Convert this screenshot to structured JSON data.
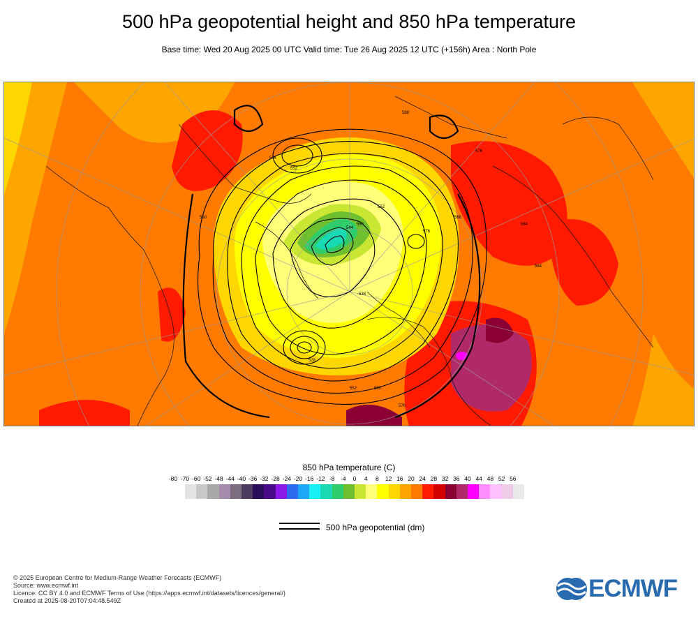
{
  "title": "500 hPa geopotential height and 850 hPa temperature",
  "subtitle": "Base time: Wed 20 Aug 2025 00 UTC Valid time: Tue 26 Aug 2025 12 UTC (+156h) Area : North Pole",
  "colorbar": {
    "title": "850 hPa temperature (C)",
    "ticks": [
      "-80",
      "-70",
      "-60",
      "-52",
      "-48",
      "-44",
      "-40",
      "-36",
      "-32",
      "-28",
      "-24",
      "-20",
      "-16",
      "-12",
      "-8",
      "-4",
      "0",
      "4",
      "8",
      "12",
      "16",
      "20",
      "24",
      "28",
      "32",
      "36",
      "40",
      "44",
      "48",
      "52",
      "56"
    ],
    "colors": [
      "#e3e3e3",
      "#c8c8c8",
      "#a9a9a9",
      "#a48bab",
      "#7b6c80",
      "#4d3a5f",
      "#2b0d5a",
      "#4a0a8a",
      "#8a19e8",
      "#2f6bf0",
      "#1ea7f5",
      "#19f0f5",
      "#19d8b4",
      "#2ecc6b",
      "#6fbf2e",
      "#c8e632",
      "#ffff7a",
      "#ffff00",
      "#ffd700",
      "#ffa500",
      "#ff7a00",
      "#ff1a00",
      "#d40000",
      "#8b0033",
      "#b02a6a",
      "#ff00ff",
      "#ff8cff",
      "#ffc0ff",
      "#eecbe7",
      "#e8e8e8"
    ]
  },
  "contour_legend": {
    "label": "500 hPa geopotential (dm)"
  },
  "contour_labels": [
    "544",
    "552",
    "560",
    "568",
    "576",
    "584",
    "568",
    "576",
    "560",
    "552",
    "544",
    "536",
    "528",
    "552",
    "560",
    "576",
    "584"
  ],
  "footer": {
    "line1": "© 2025 European Centre for Medium-Range Weather Forecasts (ECMWF)",
    "line2": "Source: www.ecmwf.int",
    "line3": "Licence: CC BY 4.0 and ECMWF Terms of Use (https://apps.ecmwf.int/datasets/licences/general/)",
    "line4": "Created at 2025-08-20T07:04:48.549Z"
  },
  "logo": {
    "text": "ECMWF",
    "color": "#2a6bb0",
    "icon": "ecmwf-logo-icon"
  }
}
